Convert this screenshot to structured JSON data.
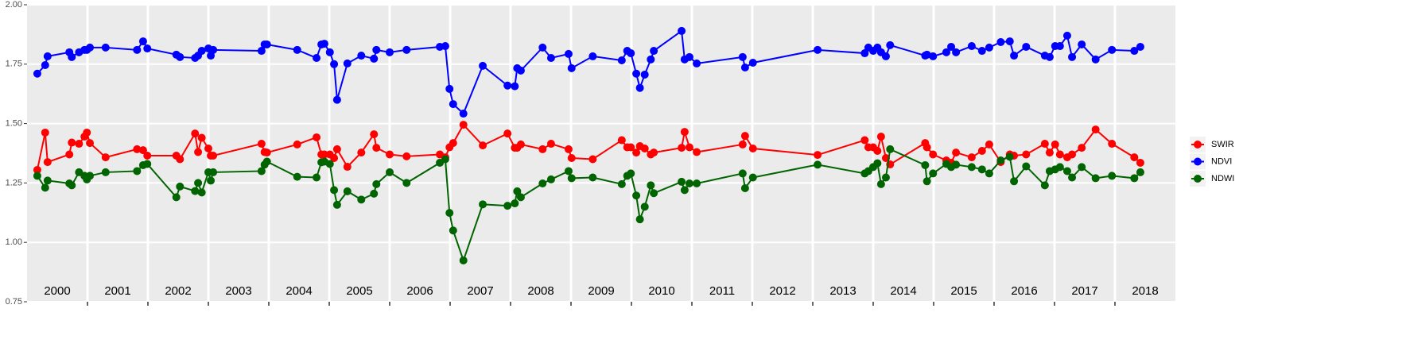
{
  "chart_data": {
    "type": "line",
    "x": [
      2000.17,
      2000.3,
      2000.34,
      2000.7,
      2000.74,
      2000.86,
      2000.95,
      2000.99,
      2001.04,
      2001.3,
      2001.82,
      2001.92,
      2001.99,
      2002.47,
      2002.53,
      2002.78,
      2002.83,
      2002.89,
      2003.0,
      2003.04,
      2003.08,
      2003.88,
      2003.93,
      2003.97,
      2004.47,
      2004.79,
      2004.87,
      2004.92,
      2005.01,
      2005.08,
      2005.13,
      2005.3,
      2005.53,
      2005.74,
      2005.78,
      2006.0,
      2006.28,
      2006.83,
      2006.92,
      2006.99,
      2007.05,
      2007.22,
      2007.54,
      2007.95,
      2008.07,
      2008.11,
      2008.17,
      2008.53,
      2008.67,
      2008.96,
      2009.01,
      2009.36,
      2009.84,
      2009.93,
      2009.99,
      2010.08,
      2010.14,
      2010.22,
      2010.32,
      2010.37,
      2010.83,
      2010.88,
      2010.96,
      2011.08,
      2011.84,
      2011.88,
      2012.01,
      2013.08,
      2013.86,
      2013.92,
      2014.0,
      2014.07,
      2014.13,
      2014.21,
      2014.28,
      2014.86,
      2014.89,
      2014.99,
      2015.21,
      2015.29,
      2015.37,
      2015.63,
      2015.8,
      2015.92,
      2016.11,
      2016.26,
      2016.33,
      2016.53,
      2016.84,
      2016.92,
      2017.01,
      2017.09,
      2017.21,
      2017.29,
      2017.45,
      2017.68,
      2017.95,
      2018.32,
      2018.42
    ],
    "series": [
      {
        "name": "SWIR",
        "color": "#ff0000",
        "values": [
          1.305,
          1.462,
          1.338,
          1.37,
          1.42,
          1.415,
          1.445,
          1.462,
          1.418,
          1.358,
          1.392,
          1.388,
          1.365,
          1.365,
          1.35,
          1.458,
          1.38,
          1.44,
          1.395,
          1.365,
          1.365,
          1.415,
          1.38,
          1.378,
          1.412,
          1.442,
          1.37,
          1.37,
          1.37,
          1.355,
          1.392,
          1.318,
          1.378,
          1.455,
          1.398,
          1.37,
          1.362,
          1.37,
          1.358,
          1.4,
          1.418,
          1.495,
          1.408,
          1.458,
          1.398,
          1.398,
          1.412,
          1.392,
          1.415,
          1.392,
          1.355,
          1.35,
          1.43,
          1.4,
          1.4,
          1.378,
          1.405,
          1.395,
          1.37,
          1.378,
          1.398,
          1.465,
          1.4,
          1.38,
          1.412,
          1.448,
          1.395,
          1.368,
          1.43,
          1.4,
          1.4,
          1.385,
          1.445,
          1.355,
          1.328,
          1.418,
          1.4,
          1.37,
          1.345,
          1.335,
          1.378,
          1.358,
          1.385,
          1.412,
          1.338,
          1.37,
          1.365,
          1.37,
          1.415,
          1.378,
          1.412,
          1.37,
          1.358,
          1.37,
          1.398,
          1.475,
          1.415,
          1.358,
          1.335
        ]
      },
      {
        "name": "NDVI",
        "color": "#0000ff",
        "values": [
          1.71,
          1.746,
          1.783,
          1.8,
          1.78,
          1.8,
          1.81,
          1.81,
          1.82,
          1.82,
          1.81,
          1.846,
          1.816,
          1.79,
          1.78,
          1.776,
          1.786,
          1.806,
          1.816,
          1.786,
          1.81,
          1.806,
          1.833,
          1.833,
          1.81,
          1.776,
          1.833,
          1.836,
          1.8,
          1.75,
          1.6,
          1.753,
          1.786,
          1.773,
          1.81,
          1.8,
          1.81,
          1.823,
          1.826,
          1.646,
          1.582,
          1.542,
          1.743,
          1.66,
          1.657,
          1.733,
          1.723,
          1.82,
          1.776,
          1.793,
          1.733,
          1.783,
          1.766,
          1.806,
          1.796,
          1.71,
          1.65,
          1.706,
          1.77,
          1.806,
          1.89,
          1.77,
          1.78,
          1.753,
          1.78,
          1.736,
          1.756,
          1.81,
          1.796,
          1.82,
          1.806,
          1.82,
          1.8,
          1.783,
          1.83,
          1.786,
          1.79,
          1.783,
          1.8,
          1.823,
          1.8,
          1.826,
          1.806,
          1.82,
          1.843,
          1.846,
          1.786,
          1.823,
          1.786,
          1.78,
          1.826,
          1.826,
          1.87,
          1.78,
          1.833,
          1.77,
          1.81,
          1.806,
          1.823
        ]
      },
      {
        "name": "NDWI",
        "color": "#006400",
        "values": [
          1.28,
          1.23,
          1.26,
          1.248,
          1.24,
          1.295,
          1.28,
          1.265,
          1.28,
          1.295,
          1.3,
          1.325,
          1.33,
          1.19,
          1.235,
          1.216,
          1.25,
          1.21,
          1.295,
          1.26,
          1.295,
          1.3,
          1.327,
          1.34,
          1.276,
          1.273,
          1.337,
          1.34,
          1.33,
          1.22,
          1.158,
          1.215,
          1.18,
          1.205,
          1.245,
          1.295,
          1.25,
          1.335,
          1.35,
          1.124,
          1.05,
          0.924,
          1.16,
          1.154,
          1.164,
          1.215,
          1.19,
          1.248,
          1.265,
          1.3,
          1.27,
          1.273,
          1.245,
          1.28,
          1.29,
          1.197,
          1.097,
          1.15,
          1.24,
          1.207,
          1.255,
          1.22,
          1.248,
          1.248,
          1.29,
          1.228,
          1.273,
          1.327,
          1.29,
          1.3,
          1.317,
          1.333,
          1.245,
          1.273,
          1.392,
          1.325,
          1.257,
          1.29,
          1.33,
          1.317,
          1.327,
          1.317,
          1.307,
          1.29,
          1.345,
          1.36,
          1.257,
          1.32,
          1.24,
          1.3,
          1.307,
          1.317,
          1.3,
          1.273,
          1.317,
          1.27,
          1.28,
          1.27,
          1.295
        ]
      }
    ],
    "year_labels": [
      2000,
      2001,
      2002,
      2003,
      2004,
      2005,
      2006,
      2007,
      2008,
      2009,
      2010,
      2011,
      2012,
      2013,
      2014,
      2015,
      2016,
      2017,
      2018
    ],
    "xlim": [
      2000,
      2019
    ],
    "xticks": [
      2001,
      2002,
      2003,
      2004,
      2005,
      2006,
      2007,
      2008,
      2009,
      2010,
      2011,
      2012,
      2013,
      2014,
      2015,
      2016,
      2017,
      2018
    ],
    "ylim": [
      0.75,
      2.0
    ],
    "yticks": [
      {
        "value": 0.75,
        "label": "0.75"
      },
      {
        "value": 1.0,
        "label": "1.00"
      },
      {
        "value": 1.25,
        "label": "1.25"
      },
      {
        "value": 1.5,
        "label": "1.50"
      },
      {
        "value": 1.75,
        "label": "1.75"
      },
      {
        "value": 2.0,
        "label": "2.00"
      }
    ],
    "grid": true,
    "legend": "right"
  }
}
